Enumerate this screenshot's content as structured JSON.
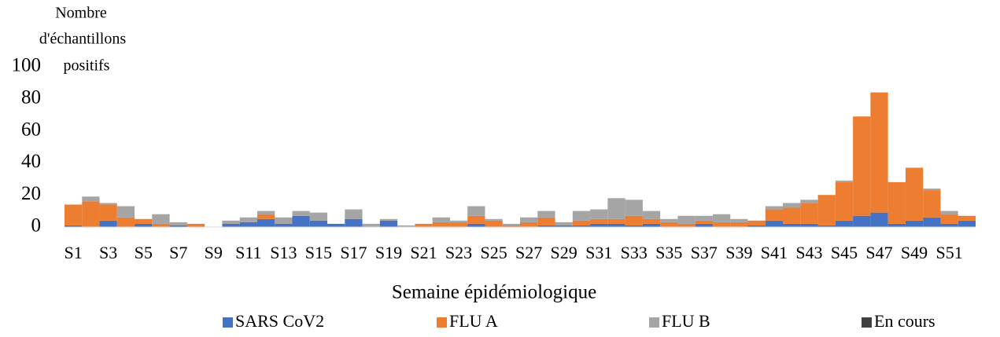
{
  "chart_data": {
    "type": "stacked_bar",
    "y_label": [
      "Nombre",
      "d'échantillons",
      "positifs"
    ],
    "x_label": "Semaine épidémiologique",
    "categories": [
      "S1",
      null,
      "S3",
      null,
      "S5",
      null,
      "S7",
      null,
      "S9",
      null,
      "S11",
      null,
      "S13",
      null,
      "S15",
      null,
      "S17",
      null,
      "S19",
      null,
      "S21",
      null,
      "S23",
      null,
      "S25",
      null,
      "S27",
      null,
      "S29",
      null,
      "S31",
      null,
      "S33",
      null,
      "S35",
      null,
      "S37",
      null,
      "S39",
      null,
      "S41",
      null,
      "S43",
      null,
      "S45",
      null,
      "S47",
      null,
      "S49",
      null,
      "S51",
      null
    ],
    "series": [
      {
        "name": "SARS CoV2",
        "color": "#4472c4",
        "values": [
          1,
          0,
          4,
          0,
          2,
          0,
          1,
          0,
          0,
          2,
          3,
          5,
          2,
          7,
          4,
          2,
          5,
          0,
          4,
          0,
          0,
          0,
          0,
          2,
          0,
          0,
          0,
          1,
          1,
          1,
          2,
          2,
          1,
          2,
          0,
          0,
          2,
          0,
          0,
          1,
          4,
          2,
          2,
          1,
          4,
          7,
          9,
          2,
          4,
          6,
          2,
          4
        ]
      },
      {
        "name": "FLU A",
        "color": "#ed7d31",
        "values": [
          13,
          16,
          10,
          6,
          3,
          2,
          0,
          2,
          0,
          0,
          0,
          3,
          0,
          0,
          0,
          0,
          0,
          0,
          0,
          0,
          2,
          3,
          3,
          5,
          4,
          1,
          3,
          5,
          0,
          3,
          3,
          3,
          6,
          3,
          3,
          2,
          2,
          3,
          3,
          3,
          7,
          10,
          13,
          19,
          24,
          62,
          75,
          26,
          33,
          17,
          6,
          3
        ]
      },
      {
        "name": "FLU B",
        "color": "#a5a5a5",
        "values": [
          0,
          3,
          1,
          7,
          0,
          6,
          2,
          0,
          0,
          2,
          3,
          2,
          4,
          3,
          5,
          0,
          6,
          2,
          1,
          1,
          0,
          3,
          1,
          6,
          1,
          1,
          3,
          4,
          2,
          6,
          6,
          13,
          10,
          5,
          2,
          5,
          3,
          5,
          2,
          0,
          2,
          3,
          2,
          0,
          1,
          0,
          0,
          0,
          0,
          1,
          2,
          0
        ]
      },
      {
        "name": "En cours",
        "color": "#404040",
        "values": [
          0,
          0,
          0,
          0,
          0,
          0,
          0,
          0,
          0,
          0,
          0,
          0,
          0,
          0,
          0,
          0,
          0,
          0,
          0,
          0,
          0,
          0,
          0,
          0,
          0,
          0,
          0,
          0,
          0,
          0,
          0,
          0,
          0,
          0,
          0,
          0,
          0,
          0,
          0,
          0,
          0,
          0,
          0,
          0,
          0,
          0,
          0,
          0,
          0,
          0,
          0,
          0
        ]
      }
    ],
    "ylim": [
      0,
      100
    ],
    "yticks": [
      0,
      20,
      40,
      60,
      80,
      100
    ],
    "legend": "bottom"
  }
}
